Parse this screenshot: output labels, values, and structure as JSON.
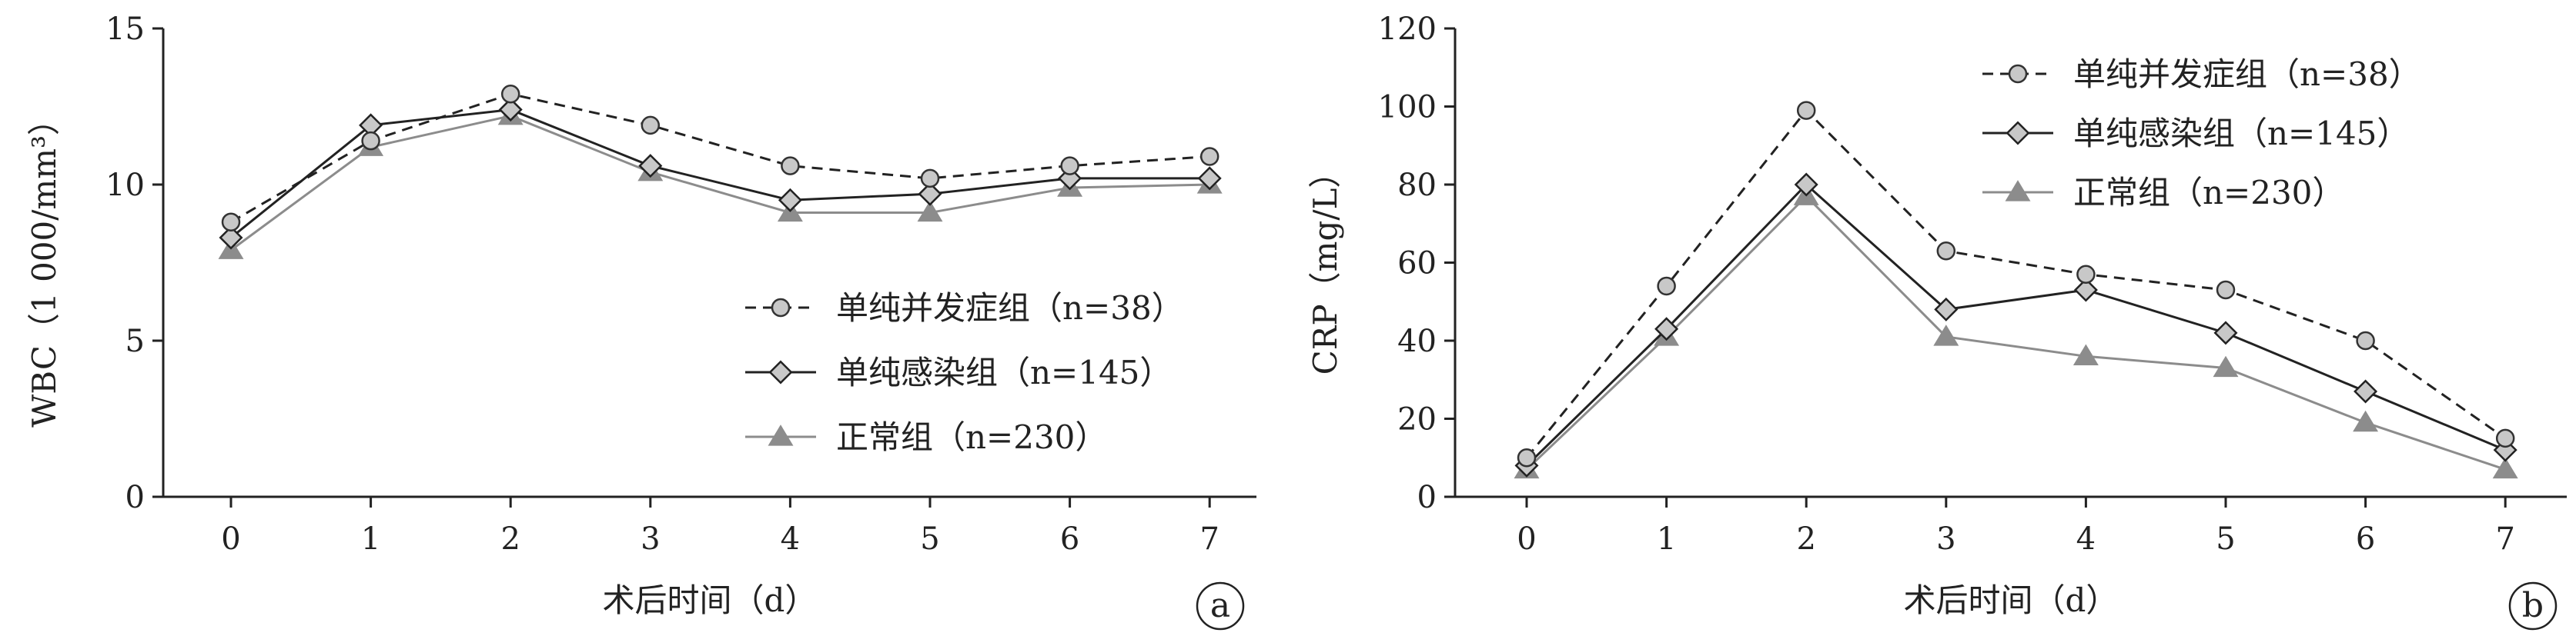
{
  "chart_data": [
    {
      "type": "line",
      "panel_label": "a",
      "xlabel": "术后时间（d）",
      "ylabel": "WBC（1 000/mm³）",
      "categories": [
        "0",
        "1",
        "2",
        "3",
        "4",
        "5",
        "6",
        "7"
      ],
      "ylim": [
        0,
        15
      ],
      "yticks": [
        "0",
        "5",
        "10",
        "15"
      ],
      "grid": false,
      "legend_position": "bottom-right",
      "series": [
        {
          "name": "单纯并发症组（n=38）",
          "values": [
            8.8,
            11.4,
            12.9,
            11.9,
            10.6,
            10.2,
            10.6,
            10.9
          ],
          "color": "#222222",
          "line": "dashed",
          "marker": "circle"
        },
        {
          "name": "单纯感染组（n=145）",
          "values": [
            8.3,
            11.9,
            12.4,
            10.6,
            9.5,
            9.7,
            10.2,
            10.2
          ],
          "color": "#222222",
          "line": "solid",
          "marker": "diamond"
        },
        {
          "name": "正常组（n=230）",
          "values": [
            7.9,
            11.2,
            12.2,
            10.4,
            9.1,
            9.1,
            9.9,
            10.0
          ],
          "color": "#8c8c8c",
          "line": "solid",
          "marker": "triangle"
        }
      ]
    },
    {
      "type": "line",
      "panel_label": "b",
      "xlabel": "术后时间（d）",
      "ylabel": "CRP（mg/L）",
      "categories": [
        "0",
        "1",
        "2",
        "3",
        "4",
        "5",
        "6",
        "7"
      ],
      "ylim": [
        0,
        120
      ],
      "yticks": [
        "0",
        "20",
        "40",
        "60",
        "80",
        "100",
        "120"
      ],
      "grid": false,
      "legend_position": "top-right",
      "series": [
        {
          "name": "单纯并发症组（n=38）",
          "values": [
            10,
            54,
            99,
            63,
            57,
            53,
            40,
            15
          ],
          "color": "#222222",
          "line": "dashed",
          "marker": "circle"
        },
        {
          "name": "单纯感染组（n=145）",
          "values": [
            8,
            43,
            80,
            48,
            53,
            42,
            27,
            12
          ],
          "color": "#222222",
          "line": "solid",
          "marker": "diamond"
        },
        {
          "name": "正常组（n=230）",
          "values": [
            7,
            41,
            77,
            41,
            36,
            33,
            19,
            7
          ],
          "color": "#8c8c8c",
          "line": "solid",
          "marker": "triangle"
        }
      ]
    }
  ]
}
